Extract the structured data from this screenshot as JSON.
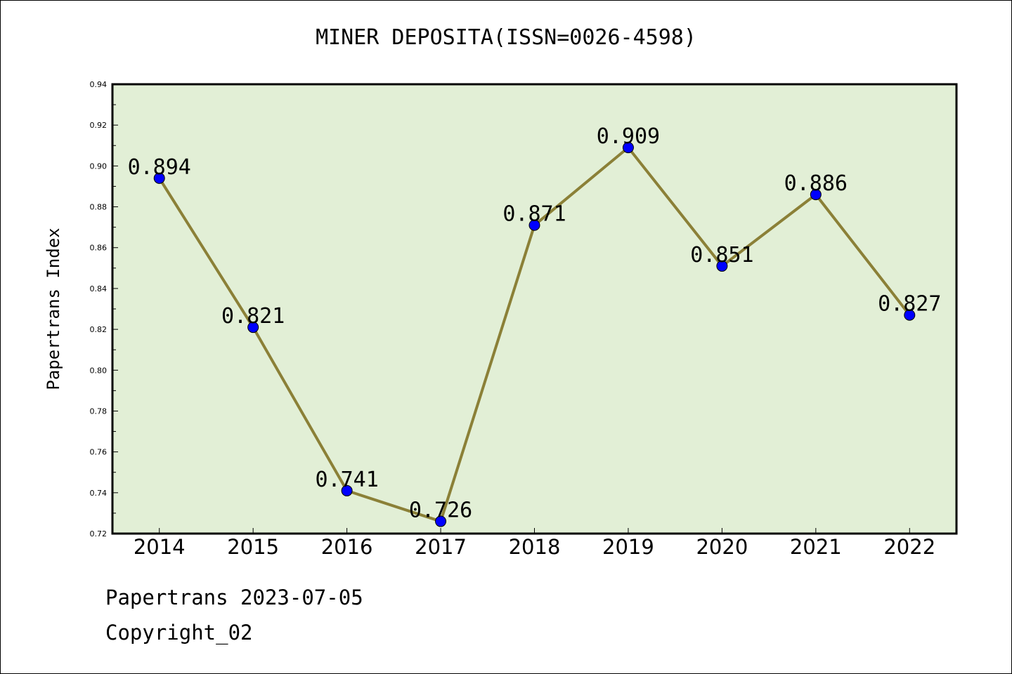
{
  "title": "MINER DEPOSITA(ISSN=0026-4598)",
  "footer": {
    "line1": "Papertrans 2023-07-05",
    "line2": "Copyright_02"
  },
  "colors": {
    "plot_background": "#e2efd6",
    "line": "#8b8037",
    "marker": "#0000ff"
  },
  "chart_data": {
    "type": "line",
    "title": "MINER DEPOSITA(ISSN=0026-4598)",
    "xlabel": "",
    "ylabel": "Papertrans Index",
    "categories": [
      "2014",
      "2015",
      "2016",
      "2017",
      "2018",
      "2019",
      "2020",
      "2021",
      "2022"
    ],
    "values": [
      0.894,
      0.821,
      0.741,
      0.726,
      0.871,
      0.909,
      0.851,
      0.886,
      0.827
    ],
    "data_labels": [
      "0.894",
      "0.821",
      "0.741",
      "0.726",
      "0.871",
      "0.909",
      "0.851",
      "0.886",
      "0.827"
    ],
    "ylim": [
      0.72,
      0.94
    ],
    "yticks": [
      "0.72",
      "0.74",
      "0.76",
      "0.78",
      "0.80",
      "0.82",
      "0.84",
      "0.86",
      "0.88",
      "0.90",
      "0.92",
      "0.94"
    ],
    "grid": false,
    "legend": "none"
  }
}
